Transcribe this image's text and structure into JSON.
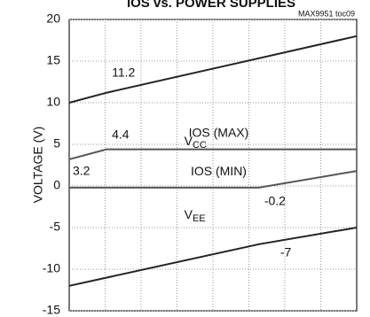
{
  "chart_data": {
    "type": "line",
    "title": "IOS vs. POWER SUPPLIES",
    "note": "MAX9951 toc09",
    "y_label": "VOLTAGE (V)",
    "xlim": [
      0,
      10
    ],
    "ylim": [
      -15,
      20
    ],
    "yticks": [
      -15,
      -10,
      -5,
      0,
      5,
      10,
      15,
      20
    ],
    "grid": true,
    "series": [
      {
        "name": "V",
        "subscript": "CC",
        "color": "#222222",
        "x": [
          0,
          1.3,
          10
        ],
        "values": [
          10,
          11.2,
          18
        ],
        "value_labels": [
          null,
          "11.2",
          null
        ]
      },
      {
        "name": "IOS (MAX)",
        "color": "#555555",
        "x": [
          0,
          1.3,
          10
        ],
        "values": [
          3.2,
          4.4,
          4.4
        ],
        "value_labels": [
          "3.2",
          "4.4",
          null
        ]
      },
      {
        "name": "IOS (MIN)",
        "color": "#555555",
        "x": [
          0,
          6.6,
          10
        ],
        "values": [
          -0.2,
          -0.2,
          1.8
        ],
        "value_labels": [
          null,
          "-0.2",
          "1.8"
        ]
      },
      {
        "name": "V",
        "subscript": "EE",
        "color": "#222222",
        "x": [
          0,
          6.6,
          10
        ],
        "values": [
          -12,
          -7,
          -5
        ],
        "value_labels": [
          null,
          "-7",
          null
        ]
      }
    ]
  }
}
